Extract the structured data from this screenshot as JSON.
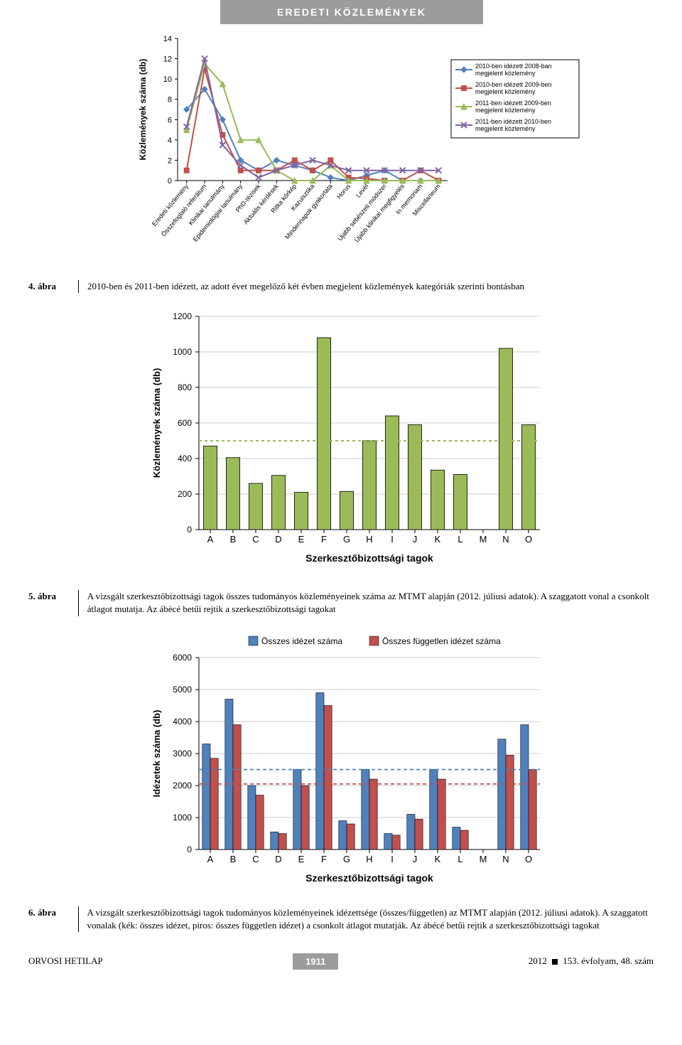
{
  "header": {
    "title": "EREDETI KÖZLEMÉNYEK"
  },
  "fig4": {
    "type": "line",
    "ylabel": "Közlemények száma (db)",
    "ylim": [
      0,
      14
    ],
    "ytick_step": 2,
    "categories": [
      "Eredeti közlemény",
      "Összefoglaló referátum",
      "Klinikai tanulmány",
      "Epidemiológiai tanulmány",
      "PhD-tézisek",
      "Aktuális kérdések",
      "Ritka kórkép",
      "Kazuisztika",
      "Mindennapok gyakorlata",
      "Horus",
      "Levél",
      "Újabb sebészeti módszer",
      "Újabb klinikai megfigyelés",
      "In memoriam",
      "Miscellaneum"
    ],
    "series": [
      {
        "name": "2010-ben idézett 2008-ban megjelent közlemény",
        "color": "#4f81bd",
        "marker": "diamond",
        "dash": "none",
        "values": [
          7,
          9,
          6,
          2,
          1,
          2,
          1.5,
          1,
          0.3,
          0,
          0.5,
          1,
          0,
          0,
          0
        ]
      },
      {
        "name": "2010-ben idézett 2009-ben megjelent közlemény",
        "color": "#c0504d",
        "marker": "square",
        "dash": "none",
        "values": [
          1,
          11,
          4.5,
          1,
          1,
          1,
          2,
          1,
          2,
          0.3,
          0.2,
          0,
          0,
          1,
          0
        ]
      },
      {
        "name": "2011-ben idézett 2009-ben megjelent közlemény",
        "color": "#9bbb59",
        "marker": "triangle",
        "dash": "none",
        "values": [
          5,
          11.5,
          9.5,
          4,
          4,
          1,
          0,
          0,
          1.5,
          0,
          0,
          0,
          0,
          0,
          0
        ]
      },
      {
        "name": "2011-ben idézett 2010-ben megjelent közlemény",
        "color": "#8064a2",
        "marker": "x",
        "dash": "none",
        "values": [
          5.3,
          12,
          3.5,
          1.5,
          0.3,
          1,
          1.5,
          2,
          1.5,
          1,
          1,
          1,
          1,
          1,
          1
        ]
      }
    ],
    "legend_box": true,
    "caption_label": "4. ábra",
    "caption": "2010-ben és 2011-ben idézett, az adott évet megelőző két évben megjelent közlemények kategóriák szerinti bontásban"
  },
  "fig5": {
    "type": "bar",
    "ylabel": "Közlemények száma (db)",
    "xlabel": "Szerkesztőbizottsági tagok",
    "ylim": [
      0,
      1200
    ],
    "ytick_step": 200,
    "categories": [
      "A",
      "B",
      "C",
      "D",
      "E",
      "F",
      "G",
      "H",
      "I",
      "J",
      "K",
      "L",
      "M",
      "N",
      "O"
    ],
    "values": [
      470,
      405,
      260,
      305,
      210,
      1080,
      215,
      500,
      640,
      590,
      335,
      310,
      0,
      1020,
      590
    ],
    "bar_color": "#9bbb59",
    "bar_border": "#000",
    "ref_line": {
      "value": 500,
      "color": "#9bbb59",
      "dash": "4,4"
    },
    "caption_label": "5. ábra",
    "caption": "A vizsgált szerkesztőbizottsági tagok összes tudományos közleményeinek száma az MTMT alapján (2012. júliusi adatok). A szaggatott vonal a csonkolt átlagot mutatja. Az ábécé betűi rejtik a szerkesztőbizottsági tagokat"
  },
  "fig6": {
    "type": "grouped-bar",
    "ylabel": "Idézetek száma (db)",
    "xlabel": "Szerkesztőbizottsági tagok",
    "ylim": [
      0,
      6000
    ],
    "ytick_step": 1000,
    "categories": [
      "A",
      "B",
      "C",
      "D",
      "E",
      "F",
      "G",
      "H",
      "I",
      "J",
      "K",
      "L",
      "M",
      "N",
      "O"
    ],
    "series": [
      {
        "name": "Összes idézet száma",
        "color": "#4f81bd",
        "values": [
          3300,
          4700,
          2000,
          550,
          2500,
          4900,
          900,
          2500,
          500,
          1100,
          2500,
          700,
          0,
          3450,
          3900
        ]
      },
      {
        "name": "Összes független idézet száma",
        "color": "#c0504d",
        "values": [
          2850,
          3900,
          1700,
          500,
          2000,
          4500,
          800,
          2200,
          450,
          950,
          2200,
          600,
          0,
          2950,
          2500
        ]
      }
    ],
    "ref_lines": [
      {
        "value": 2500,
        "color": "#4f81bd",
        "dash": "5,4"
      },
      {
        "value": 2050,
        "color": "#c0504d",
        "dash": "5,4"
      }
    ],
    "legend": [
      {
        "box": "#4f81bd",
        "label": "Összes idézet száma"
      },
      {
        "box": "#c0504d",
        "label": "Összes független idézet száma"
      }
    ],
    "caption_label": "6. ábra",
    "caption": "A vizsgált szerkesztőbizottsági tagok tudományos közleményeinek idézettsége (összes/független) az MTMT alapján (2012. júliusi adatok). A szaggatott vonalak (kék: összes idézet, piros: összes független idézet) a csonkolt átlagot mutatják. Az ábécé betűi rejtik a szerkesztőbizottsági tagokat"
  },
  "footer": {
    "journal": "ORVOSI HETILAP",
    "page": "1911",
    "right": "2012 ■ 153. évfolyam, 48. szám"
  }
}
